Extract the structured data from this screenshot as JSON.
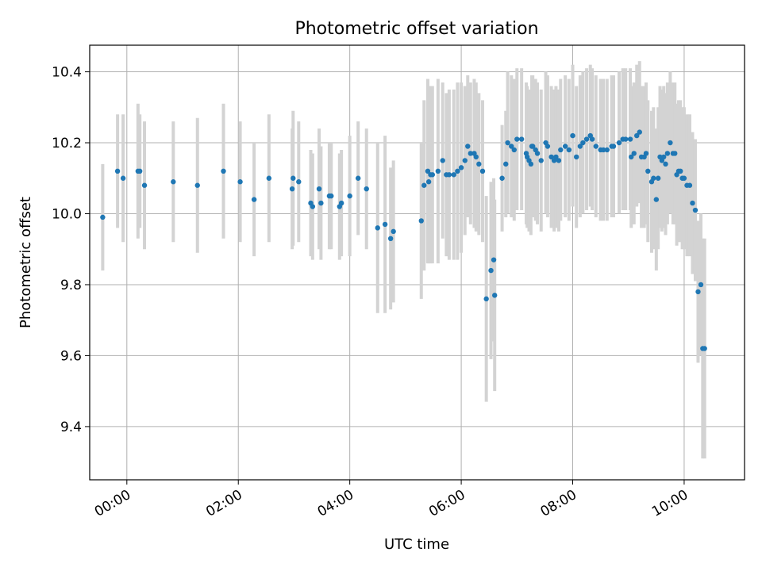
{
  "chart_data": {
    "type": "scatter",
    "title": "Photometric offset variation",
    "xlabel": "UTC time",
    "ylabel": "Photometric offset",
    "grid": true,
    "legend": "none",
    "xlim": [
      "23:20",
      "11:05"
    ],
    "ylim": [
      9.25,
      10.475
    ],
    "x_ticks": [
      "00:00",
      "02:00",
      "04:00",
      "06:00",
      "08:00",
      "10:00"
    ],
    "y_ticks": [
      9.4,
      9.6,
      9.8,
      10.0,
      10.2,
      10.4
    ],
    "y_tick_labels": [
      "9.4",
      "9.6",
      "9.8",
      "10.0",
      "10.2",
      "10.4"
    ],
    "marker_color": "#1f77b4",
    "errorbar_color": "#d3d3d3",
    "series": [
      {
        "x": [
          "23:34",
          "23:50",
          "23:56",
          "00:12",
          "00:14",
          "00:19",
          "00:50",
          "01:16",
          "01:44",
          "02:02",
          "02:17",
          "02:33",
          "02:58",
          "02:59",
          "03:05",
          "03:18",
          "03:20",
          "03:27",
          "03:29",
          "03:38",
          "03:40",
          "03:49",
          "03:51",
          "04:00",
          "04:09",
          "04:18",
          "04:30",
          "04:38",
          "04:44",
          "04:47",
          "05:17",
          "05:20",
          "05:24",
          "05:25",
          "05:27",
          "05:29",
          "05:35",
          "05:40",
          "05:44",
          "05:47",
          "05:52",
          "05:56",
          "06:00",
          "06:04",
          "06:07",
          "06:10",
          "06:14",
          "06:16",
          "06:19",
          "06:23",
          "06:27",
          "06:32",
          "06:35",
          "06:36",
          "06:44",
          "06:48",
          "06:50",
          "06:54",
          "06:57",
          "07:00",
          "07:05",
          "07:10",
          "07:11",
          "07:13",
          "07:15",
          "07:16",
          "07:17",
          "07:20",
          "07:22",
          "07:26",
          "07:31",
          "07:33",
          "07:37",
          "07:40",
          "07:42",
          "07:45",
          "07:47",
          "07:52",
          "07:56",
          "08:00",
          "08:04",
          "08:08",
          "08:11",
          "08:15",
          "08:19",
          "08:21",
          "08:25",
          "08:30",
          "08:33",
          "08:37",
          "08:42",
          "08:44",
          "08:50",
          "08:54",
          "08:57",
          "09:02",
          "09:03",
          "09:06",
          "09:09",
          "09:12",
          "09:14",
          "09:17",
          "09:19",
          "09:21",
          "09:25",
          "09:27",
          "09:30",
          "09:32",
          "09:34",
          "09:36",
          "09:38",
          "09:40",
          "09:42",
          "09:45",
          "09:48",
          "09:50",
          "09:52",
          "09:54",
          "09:56",
          "09:58",
          "10:00",
          "10:03",
          "10:06",
          "10:09",
          "10:12",
          "10:15",
          "10:18",
          "10:20",
          "10:22"
        ],
        "y": [
          9.99,
          10.12,
          10.1,
          10.12,
          10.12,
          10.08,
          10.09,
          10.08,
          10.12,
          10.09,
          10.04,
          10.1,
          10.07,
          10.1,
          10.09,
          10.03,
          10.02,
          10.07,
          10.03,
          10.05,
          10.05,
          10.02,
          10.03,
          10.05,
          10.1,
          10.07,
          9.96,
          9.97,
          9.93,
          9.95,
          9.98,
          10.08,
          10.12,
          10.09,
          10.11,
          10.11,
          10.12,
          10.15,
          10.11,
          10.11,
          10.11,
          10.12,
          10.13,
          10.15,
          10.19,
          10.17,
          10.17,
          10.16,
          10.14,
          10.12,
          9.76,
          9.84,
          9.87,
          9.77,
          10.1,
          10.14,
          10.2,
          10.19,
          10.18,
          10.21,
          10.21,
          10.17,
          10.16,
          10.15,
          10.14,
          10.19,
          10.19,
          10.18,
          10.17,
          10.15,
          10.2,
          10.19,
          10.16,
          10.15,
          10.16,
          10.15,
          10.18,
          10.19,
          10.18,
          10.22,
          10.16,
          10.19,
          10.2,
          10.21,
          10.22,
          10.21,
          10.19,
          10.18,
          10.18,
          10.18,
          10.19,
          10.19,
          10.2,
          10.21,
          10.21,
          10.21,
          10.16,
          10.17,
          10.22,
          10.23,
          10.16,
          10.16,
          10.17,
          10.12,
          10.09,
          10.1,
          10.04,
          10.1,
          10.16,
          10.15,
          10.16,
          10.14,
          10.17,
          10.2,
          10.17,
          10.17,
          10.11,
          10.12,
          10.12,
          10.1,
          10.1,
          10.08,
          10.08,
          10.03,
          10.01,
          9.78,
          9.8,
          9.62,
          9.62
        ],
        "err": [
          0.15,
          0.16,
          0.18,
          0.19,
          0.16,
          0.18,
          0.17,
          0.19,
          0.19,
          0.17,
          0.16,
          0.18,
          0.17,
          0.19,
          0.17,
          0.15,
          0.15,
          0.17,
          0.16,
          0.15,
          0.15,
          0.15,
          0.15,
          0.17,
          0.16,
          0.17,
          0.24,
          0.25,
          0.2,
          0.2,
          0.22,
          0.24,
          0.26,
          0.23,
          0.25,
          0.25,
          0.26,
          0.22,
          0.23,
          0.24,
          0.24,
          0.25,
          0.24,
          0.21,
          0.2,
          0.2,
          0.21,
          0.21,
          0.2,
          0.2,
          0.29,
          0.25,
          0.23,
          0.27,
          0.15,
          0.15,
          0.2,
          0.2,
          0.2,
          0.2,
          0.2,
          0.2,
          0.2,
          0.2,
          0.2,
          0.2,
          0.2,
          0.2,
          0.2,
          0.2,
          0.2,
          0.2,
          0.2,
          0.2,
          0.2,
          0.2,
          0.2,
          0.2,
          0.2,
          0.2,
          0.2,
          0.2,
          0.2,
          0.2,
          0.2,
          0.2,
          0.2,
          0.2,
          0.2,
          0.2,
          0.2,
          0.2,
          0.2,
          0.2,
          0.2,
          0.2,
          0.2,
          0.2,
          0.2,
          0.2,
          0.2,
          0.2,
          0.2,
          0.2,
          0.2,
          0.2,
          0.2,
          0.2,
          0.2,
          0.2,
          0.2,
          0.2,
          0.2,
          0.2,
          0.2,
          0.2,
          0.2,
          0.2,
          0.2,
          0.2,
          0.2,
          0.2,
          0.2,
          0.2,
          0.2,
          0.2,
          0.2,
          0.31,
          0.31
        ]
      }
    ]
  }
}
